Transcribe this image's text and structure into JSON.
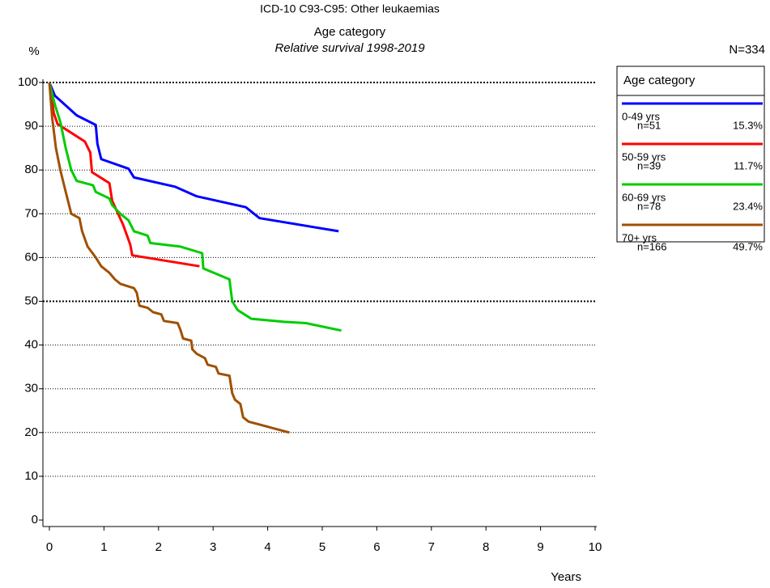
{
  "chart_data": {
    "type": "line",
    "title": "ICD-10 C93-C95: Other leukaemias",
    "subtitle": "Age category",
    "caption": "Relative survival 1998-2019",
    "y_label": "%",
    "x_label": "Years",
    "total_label": "N=334",
    "legend_title": "Age category",
    "xlim": [
      0,
      10
    ],
    "xticks": [
      0,
      1,
      2,
      3,
      4,
      5,
      6,
      7,
      8,
      9,
      10
    ],
    "ylim": [
      0,
      100
    ],
    "yticks": [
      0,
      10,
      20,
      30,
      40,
      50,
      60,
      70,
      80,
      90,
      100
    ],
    "grid": true,
    "major_grid": [
      50,
      100
    ],
    "series": [
      {
        "name": "0-49 yrs",
        "count_label": "n=51",
        "share_label": "15.3%",
        "color": "#0000ff",
        "x": [
          0,
          0.1,
          0.5,
          0.85,
          0.88,
          0.95,
          1.45,
          1.55,
          2.3,
          2.7,
          3.6,
          3.85,
          5.3
        ],
        "values": [
          100,
          97,
          92.5,
          90.3,
          86,
          82.5,
          80.3,
          78.3,
          76.2,
          74,
          71.5,
          69,
          66
        ]
      },
      {
        "name": "50-59 yrs",
        "count_label": "n=39",
        "share_label": "11.7%",
        "color": "#ff0000",
        "x": [
          0,
          0.08,
          0.15,
          0.4,
          0.65,
          0.75,
          0.78,
          1.1,
          1.15,
          1.35,
          1.48,
          1.52,
          2.75
        ],
        "values": [
          100,
          93,
          90.5,
          88.5,
          86.5,
          84,
          79.5,
          77,
          73,
          67.5,
          63,
          60.5,
          58
        ]
      },
      {
        "name": "60-69 yrs",
        "count_label": "n=78",
        "share_label": "23.4%",
        "color": "#00cc00",
        "x": [
          0,
          0.1,
          0.2,
          0.3,
          0.4,
          0.5,
          0.8,
          0.85,
          1.1,
          1.15,
          1.3,
          1.45,
          1.55,
          1.8,
          1.85,
          2.4,
          2.8,
          2.82,
          3.3,
          3.35,
          3.45,
          3.7,
          4.3,
          4.7,
          5.35
        ],
        "values": [
          100,
          95,
          91,
          85,
          80,
          77.5,
          76.5,
          75,
          73.5,
          72,
          70,
          68.5,
          66,
          65,
          63.3,
          62.5,
          61,
          57.5,
          55,
          50,
          48,
          46,
          45.3,
          45,
          43.3
        ]
      },
      {
        "name": "70+ yrs",
        "count_label": "n=166",
        "share_label": "49.7%",
        "color": "#a05000",
        "x": [
          0,
          0.05,
          0.12,
          0.2,
          0.3,
          0.4,
          0.55,
          0.6,
          0.7,
          0.85,
          0.95,
          1.1,
          1.2,
          1.3,
          1.55,
          1.6,
          1.65,
          1.8,
          1.9,
          2.05,
          2.1,
          2.35,
          2.4,
          2.45,
          2.6,
          2.62,
          2.7,
          2.85,
          2.9,
          3.05,
          3.1,
          3.3,
          3.35,
          3.4,
          3.5,
          3.55,
          3.65,
          3.95,
          4.1,
          4.4
        ],
        "values": [
          100,
          92,
          85,
          80,
          75,
          70,
          69,
          66,
          62.5,
          60,
          58,
          56.5,
          55,
          54,
          53,
          52,
          49,
          48.5,
          47.5,
          47,
          45.5,
          45,
          43.5,
          41.5,
          41,
          39,
          38,
          37,
          35.5,
          35,
          33.5,
          33,
          29,
          27.5,
          26.5,
          23.5,
          22.5,
          21.5,
          21,
          20
        ]
      }
    ]
  }
}
